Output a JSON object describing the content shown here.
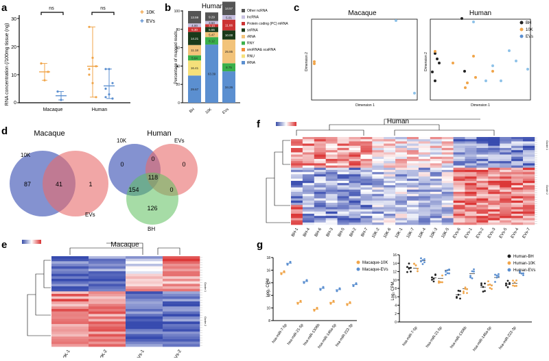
{
  "panels": {
    "a": {
      "letter": "a",
      "ylabel": "RNA concentration (/100mg tissue (ng)",
      "legend": [
        "10K",
        "EVs"
      ],
      "xcats": [
        "Macaque",
        "Human"
      ],
      "yticks": [
        "0",
        "10",
        "20",
        "30"
      ],
      "sig": [
        "ns",
        "ns"
      ]
    },
    "b": {
      "letter": "b",
      "title": "Human",
      "ylabel": "Percentage of mapped reads",
      "yticks": [
        "0",
        "20",
        "40",
        "60",
        "80",
        "100"
      ],
      "xcats": [
        "BH",
        "10K",
        "EVs"
      ],
      "legend": [
        "Other ncRNA",
        "lncRNA",
        "Protein coding (PC) mRNA",
        "snRNA",
        "rRNA",
        "RNY",
        "snoRNA& scaRNA",
        "RNU",
        "tRNA"
      ],
      "colors": [
        "#555555",
        "#c7c0e0",
        "#cc3333",
        "#1a3a1a",
        "#f2c37a",
        "#3ab04a",
        "#f08a3a",
        "#f5e07a",
        "#5b8fd0"
      ]
    },
    "c": {
      "letter": "c",
      "title_left": "Macaque",
      "title_right": "Human",
      "xlabel": "Dimension 1",
      "ylabel": "Dimension 2",
      "legend": [
        "BH",
        "10K",
        "EVs"
      ]
    },
    "d": {
      "letter": "d",
      "title_left": "Macaque",
      "title_right": "Human",
      "mac_labels": [
        "10K",
        "EVs"
      ],
      "mac_counts": [
        "87",
        "41",
        "1"
      ],
      "hum_labels": [
        "10K",
        "EVs",
        "BH"
      ],
      "hum_counts": [
        "0",
        "0",
        "0",
        "118",
        "154",
        "0",
        "126"
      ]
    },
    "e": {
      "letter": "e",
      "title": "Macaque",
      "xcats": [
        "10K-1",
        "10K-2",
        "EVs-1",
        "EVs-2"
      ],
      "clusters": [
        "Cluster 1",
        "Cluster 2"
      ]
    },
    "f": {
      "letter": "f",
      "title": "Human",
      "xcats": [
        "BH-1",
        "BH-4",
        "BH-6",
        "BH-3",
        "BH-5",
        "BH-2",
        "BH-7",
        "10K-2",
        "10K-6",
        "10K-1",
        "10K-7",
        "10K-4",
        "10K-3",
        "10K-5",
        "EVs-6",
        "EVs-1",
        "EVs-2",
        "EVs-3",
        "EVs-5",
        "EVs-4",
        "EVs-7"
      ],
      "clusters": [
        "Cluster 1",
        "Cluster 2"
      ]
    },
    "g": {
      "letter": "g",
      "ylabel": "Log₂ CPM",
      "left_legend": [
        "Macaque-10K",
        "Macaque-EVs"
      ],
      "right_legend": [
        "Human-BH",
        "Human-10K",
        "Human-EVs"
      ],
      "mirnas": [
        "hsa-miR-7-5p",
        "hsa-miR-21-5p",
        "hsa-miR-1306b",
        "hsa-miR-146a-5p",
        "hsa-miR-222-3p"
      ],
      "yticks_left": [
        "8",
        "10",
        "12",
        "14",
        "16",
        "18"
      ],
      "yticks_right": [
        "0",
        "2",
        "4",
        "6",
        "8",
        "10",
        "12",
        "14",
        "16"
      ]
    }
  },
  "colors": {
    "orange": "#f0a54a",
    "blue": "#5b8fd0",
    "black": "#222222",
    "red": "#d94040"
  },
  "chart_data": [
    {
      "type": "scatter",
      "title": "a",
      "categories": [
        "Macaque",
        "Human"
      ],
      "ylabel": "RNA concentration (/100mg tissue (ng)",
      "ylim": [
        0,
        30
      ],
      "series": [
        {
          "name": "10K",
          "means": [
            11,
            13
          ],
          "points": [
            [
              14,
              8,
              11
            ],
            [
              27,
              16,
              13,
              10,
              7,
              2,
              12
            ]
          ]
        },
        {
          "name": "EVs",
          "means": [
            2.5,
            6
          ],
          "points": [
            [
              4,
              1
            ],
            [
              12,
              12,
              7,
              5,
              3,
              1.5,
              2
            ]
          ]
        }
      ]
    },
    {
      "type": "bar",
      "title": "Human",
      "categories": [
        "BH",
        "10K",
        "EVs"
      ],
      "ylim": [
        0,
        100
      ],
      "series": [
        {
          "name": "tRNA",
          "values": [
            29.67,
            63.39,
            34.26
          ]
        },
        {
          "name": "RNU",
          "values": [
            16.41,
            0,
            0
          ]
        },
        {
          "name": "snoRNA& scaRNA",
          "values": [
            0,
            0,
            0
          ]
        },
        {
          "name": "RNY",
          "values": [
            5.64,
            8.12,
            8.75
          ]
        },
        {
          "name": "rRNA",
          "values": [
            11.18,
            5.47,
            25.85
          ]
        },
        {
          "name": "snRNA",
          "values": [
            14.21,
            5.55,
            10.0
          ]
        },
        {
          "name": "Protein coding (PC) mRNA",
          "values": [
            5.3,
            3.1,
            11.66
          ]
        },
        {
          "name": "lncRNA",
          "values": [
            4.0,
            3.5,
            5.01
          ]
        },
        {
          "name": "Other ncRNA",
          "values": [
            13.59,
            9.29,
            14.57
          ]
        }
      ]
    },
    {
      "type": "scatter",
      "title": "g-Macaque",
      "categories": [
        "hsa-miR-7-5p",
        "hsa-miR-21-5p",
        "hsa-miR-1306b",
        "hsa-miR-146a-5p",
        "hsa-miR-222-3p"
      ],
      "ylabel": "Log₂ CPM",
      "ylim": [
        8,
        18
      ],
      "series": [
        {
          "name": "Macaque-10K",
          "values": [
            15.6,
            10.9,
            9.8,
            10.9,
            10.7
          ]
        },
        {
          "name": "Macaque-EVs",
          "values": [
            17.1,
            14.2,
            13.1,
            12.9,
            13.7
          ]
        }
      ]
    },
    {
      "type": "scatter",
      "title": "g-Human",
      "categories": [
        "hsa-miR-7-5p",
        "hsa-miR-21-5p",
        "hsa-miR-1306b",
        "hsa-miR-146a-5p",
        "hsa-miR-222-3p"
      ],
      "ylabel": "Log₂ CPM",
      "ylim": [
        0,
        16
      ],
      "series": [
        {
          "name": "Human-BH",
          "values": [
            13.0,
            10.5,
            6.5,
            8.3,
            9.0
          ]
        },
        {
          "name": "Human-10K",
          "values": [
            12.8,
            10.4,
            7.9,
            8.8,
            9.2
          ]
        },
        {
          "name": "Human-EVs",
          "values": [
            14.6,
            12.3,
            11.5,
            10.6,
            11.6
          ]
        }
      ]
    }
  ]
}
